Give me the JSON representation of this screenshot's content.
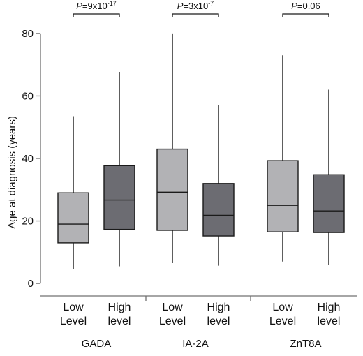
{
  "chart_data": {
    "type": "boxplot",
    "ylabel": "Age at diagnosis (years)",
    "ylim": [
      -4,
      84
    ],
    "yticks": [
      0,
      20,
      40,
      60,
      80
    ],
    "grid": false,
    "series": [
      {
        "name": "Low Level",
        "label_lines": [
          "Low",
          "Level"
        ],
        "color": "#b2b2b5"
      },
      {
        "name": "High level",
        "label_lines": [
          "High",
          "level"
        ],
        "color": "#6c6c72"
      }
    ],
    "groups": [
      {
        "name": "GADA",
        "pvalue": {
          "prefix": "P",
          "text": "=9x10",
          "exponent": "-17"
        },
        "boxes": [
          {
            "series": "Low Level",
            "min": 4.5,
            "q1": 13,
            "median": 19,
            "q3": 29,
            "max": 53.5
          },
          {
            "series": "High level",
            "min": 5.5,
            "q1": 17.3,
            "median": 26.7,
            "q3": 37.7,
            "max": 67.7
          }
        ]
      },
      {
        "name": "IA-2A",
        "pvalue": {
          "prefix": "P",
          "text": "=3x10",
          "exponent": "-7"
        },
        "boxes": [
          {
            "series": "Low Level",
            "min": 6.5,
            "q1": 17,
            "median": 29.2,
            "q3": 43,
            "max": 80
          },
          {
            "series": "High level",
            "min": 5.7,
            "q1": 15.2,
            "median": 21.8,
            "q3": 32,
            "max": 57.2
          }
        ]
      },
      {
        "name": "ZnT8A",
        "pvalue": {
          "prefix": "P",
          "text": "=0.06",
          "exponent": ""
        },
        "boxes": [
          {
            "series": "Low Level",
            "min": 7,
            "q1": 16.5,
            "median": 25,
            "q3": 39.3,
            "max": 73
          },
          {
            "series": "High level",
            "min": 6,
            "q1": 16.3,
            "median": 23.2,
            "q3": 34.8,
            "max": 62
          }
        ]
      }
    ]
  }
}
